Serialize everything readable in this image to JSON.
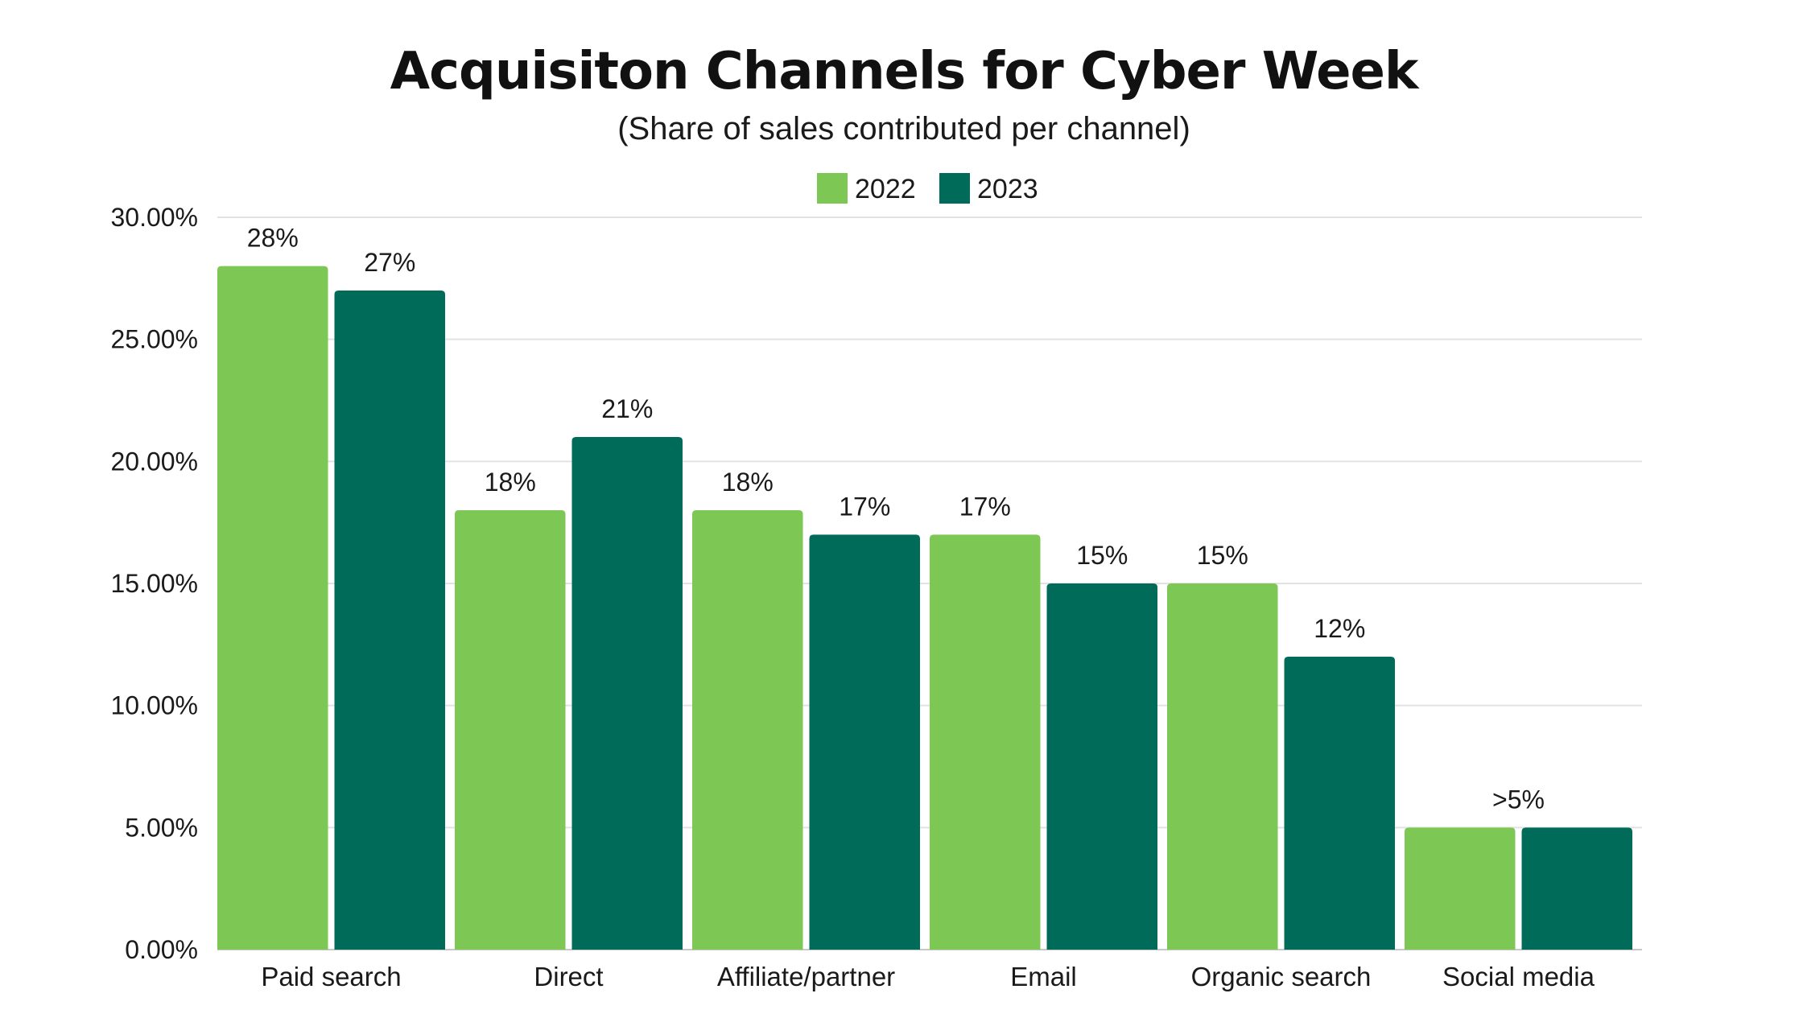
{
  "chart_data": {
    "type": "bar",
    "title": "Acquisiton Channels for Cyber Week",
    "subtitle": "(Share of sales contributed per channel)",
    "xlabel": "",
    "ylabel": "",
    "ylim": [
      0,
      30
    ],
    "y_ticks": [
      0,
      5,
      10,
      15,
      20,
      25,
      30
    ],
    "y_tick_labels": [
      "0.00%",
      "5.00%",
      "10.00%",
      "15.00%",
      "20.00%",
      "25.00%",
      "30.00%"
    ],
    "grid": true,
    "legend_position": "top-center",
    "categories": [
      "Paid search",
      "Direct",
      "Affiliate/partner",
      "Email",
      "Organic search",
      "Social media"
    ],
    "series": [
      {
        "name": "2022",
        "color": "#7dc855",
        "values": [
          28,
          18,
          18,
          17,
          15,
          5
        ],
        "labels": [
          "28%",
          "18%",
          "18%",
          "17%",
          "15%",
          ""
        ]
      },
      {
        "name": "2023",
        "color": "#006b58",
        "values": [
          27,
          21,
          17,
          15,
          12,
          5
        ],
        "labels": [
          "27%",
          "21%",
          "17%",
          "15%",
          "12%",
          ""
        ]
      }
    ],
    "group_labels": [
      "",
      "",
      "",
      "",
      "",
      ">5%"
    ]
  }
}
